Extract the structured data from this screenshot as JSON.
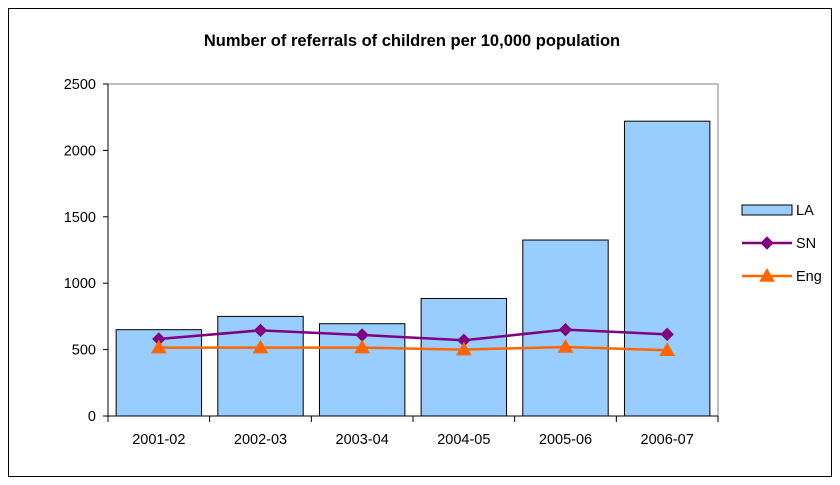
{
  "chart_data": {
    "type": "bar",
    "title": "Number of referrals of children per 10,000 population",
    "xlabel": "",
    "ylabel": "",
    "categories": [
      "2001-02",
      "2002-03",
      "2003-04",
      "2004-05",
      "2005-06",
      "2006-07"
    ],
    "ylim": [
      0,
      2500
    ],
    "yticks": [
      0,
      500,
      1000,
      1500,
      2000,
      2500
    ],
    "grid": false,
    "legend_position": "right",
    "series": [
      {
        "name": "LA",
        "type": "bar",
        "color": "#99CCFF",
        "marker": "none",
        "values": [
          650,
          750,
          695,
          885,
          1325,
          2220
        ]
      },
      {
        "name": "SN",
        "type": "line",
        "color": "#7F007F",
        "marker": "diamond",
        "values": [
          580,
          645,
          610,
          570,
          650,
          615
        ]
      },
      {
        "name": "Eng",
        "type": "line",
        "color": "#FF6600",
        "marker": "triangle",
        "values": [
          515,
          515,
          515,
          500,
          520,
          495
        ]
      }
    ]
  }
}
